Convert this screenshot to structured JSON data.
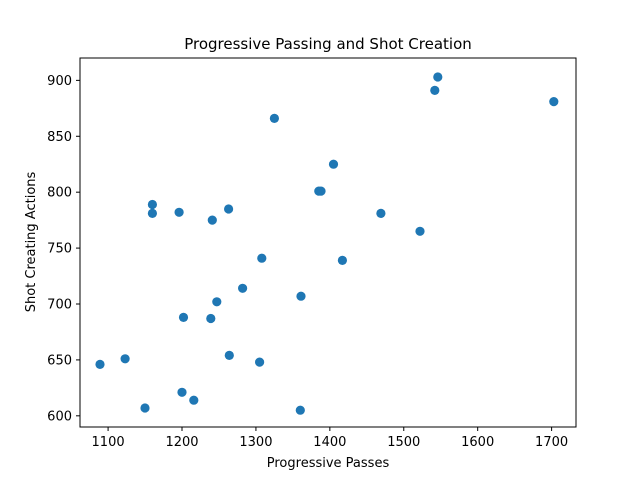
{
  "chart_data": {
    "type": "scatter",
    "title": "Progressive Passing and Shot Creation",
    "xlabel": "Progressive Passes",
    "ylabel": "Shot Creating Actions",
    "xlim": [
      1062,
      1733
    ],
    "ylim": [
      590,
      920
    ],
    "xticks": [
      1100,
      1200,
      1300,
      1400,
      1500,
      1600,
      1700
    ],
    "yticks": [
      600,
      650,
      700,
      750,
      800,
      850,
      900
    ],
    "grid": false,
    "color": "#1f77b4",
    "points": [
      {
        "x": 1546,
        "y": 903
      },
      {
        "x": 1542,
        "y": 891
      },
      {
        "x": 1703,
        "y": 881
      },
      {
        "x": 1325,
        "y": 866
      },
      {
        "x": 1405,
        "y": 825
      },
      {
        "x": 1385,
        "y": 801
      },
      {
        "x": 1388,
        "y": 801
      },
      {
        "x": 1160,
        "y": 789
      },
      {
        "x": 1263,
        "y": 785
      },
      {
        "x": 1196,
        "y": 782
      },
      {
        "x": 1160,
        "y": 781
      },
      {
        "x": 1469,
        "y": 781
      },
      {
        "x": 1241,
        "y": 775
      },
      {
        "x": 1522,
        "y": 765
      },
      {
        "x": 1308,
        "y": 741
      },
      {
        "x": 1417,
        "y": 739
      },
      {
        "x": 1282,
        "y": 714
      },
      {
        "x": 1361,
        "y": 707
      },
      {
        "x": 1247,
        "y": 702
      },
      {
        "x": 1202,
        "y": 688
      },
      {
        "x": 1239,
        "y": 687
      },
      {
        "x": 1264,
        "y": 654
      },
      {
        "x": 1123,
        "y": 651
      },
      {
        "x": 1305,
        "y": 648
      },
      {
        "x": 1089,
        "y": 646
      },
      {
        "x": 1200,
        "y": 621
      },
      {
        "x": 1216,
        "y": 614
      },
      {
        "x": 1150,
        "y": 607
      },
      {
        "x": 1360,
        "y": 605
      }
    ]
  }
}
